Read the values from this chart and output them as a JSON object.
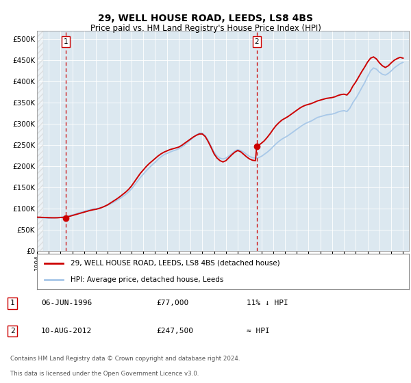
{
  "title": "29, WELL HOUSE ROAD, LEEDS, LS8 4BS",
  "subtitle": "Price paid vs. HM Land Registry's House Price Index (HPI)",
  "xlim": [
    1994.0,
    2025.5
  ],
  "ylim": [
    0,
    520000
  ],
  "yticks": [
    0,
    50000,
    100000,
    150000,
    200000,
    250000,
    300000,
    350000,
    400000,
    450000,
    500000
  ],
  "ytick_labels": [
    "£0",
    "£50K",
    "£100K",
    "£150K",
    "£200K",
    "£250K",
    "£300K",
    "£350K",
    "£400K",
    "£450K",
    "£500K"
  ],
  "hpi_color": "#a8c8e8",
  "price_color": "#cc0000",
  "vline_color": "#cc0000",
  "plot_bg_color": "#dce8f0",
  "marker1_date": 1996.44,
  "marker1_price": 77000,
  "marker2_date": 2012.61,
  "marker2_price": 247500,
  "legend_label1": "29, WELL HOUSE ROAD, LEEDS, LS8 4BS (detached house)",
  "legend_label2": "HPI: Average price, detached house, Leeds",
  "table_row1": [
    "1",
    "06-JUN-1996",
    "£77,000",
    "11% ↓ HPI"
  ],
  "table_row2": [
    "2",
    "10-AUG-2012",
    "£247,500",
    "≈ HPI"
  ],
  "footnote1": "Contains HM Land Registry data © Crown copyright and database right 2024.",
  "footnote2": "This data is licensed under the Open Government Licence v3.0.",
  "hpi_data": [
    [
      1994.0,
      78000
    ],
    [
      1994.25,
      78200
    ],
    [
      1994.5,
      77800
    ],
    [
      1994.75,
      77400
    ],
    [
      1995.0,
      77000
    ],
    [
      1995.25,
      77300
    ],
    [
      1995.5,
      77800
    ],
    [
      1995.75,
      78500
    ],
    [
      1996.0,
      79500
    ],
    [
      1996.25,
      80500
    ],
    [
      1996.5,
      81800
    ],
    [
      1996.75,
      83200
    ],
    [
      1997.0,
      85000
    ],
    [
      1997.25,
      87000
    ],
    [
      1997.5,
      89200
    ],
    [
      1997.75,
      91500
    ],
    [
      1998.0,
      93500
    ],
    [
      1998.25,
      95500
    ],
    [
      1998.5,
      97200
    ],
    [
      1998.75,
      98500
    ],
    [
      1999.0,
      99500
    ],
    [
      1999.25,
      101000
    ],
    [
      1999.5,
      103000
    ],
    [
      1999.75,
      105500
    ],
    [
      2000.0,
      108000
    ],
    [
      2000.25,
      111500
    ],
    [
      2000.5,
      115000
    ],
    [
      2000.75,
      119000
    ],
    [
      2001.0,
      123000
    ],
    [
      2001.25,
      128000
    ],
    [
      2001.5,
      133000
    ],
    [
      2001.75,
      139000
    ],
    [
      2002.0,
      146000
    ],
    [
      2002.25,
      155000
    ],
    [
      2002.5,
      164000
    ],
    [
      2002.75,
      173000
    ],
    [
      2003.0,
      181000
    ],
    [
      2003.25,
      189000
    ],
    [
      2003.5,
      196000
    ],
    [
      2003.75,
      203000
    ],
    [
      2004.0,
      209000
    ],
    [
      2004.25,
      216000
    ],
    [
      2004.5,
      222000
    ],
    [
      2004.75,
      227000
    ],
    [
      2005.0,
      230000
    ],
    [
      2005.25,
      233000
    ],
    [
      2005.5,
      236000
    ],
    [
      2005.75,
      238000
    ],
    [
      2006.0,
      241000
    ],
    [
      2006.25,
      245000
    ],
    [
      2006.5,
      250000
    ],
    [
      2006.75,
      256000
    ],
    [
      2007.0,
      262000
    ],
    [
      2007.25,
      268000
    ],
    [
      2007.5,
      274000
    ],
    [
      2007.75,
      278000
    ],
    [
      2008.0,
      278000
    ],
    [
      2008.25,
      272000
    ],
    [
      2008.5,
      261000
    ],
    [
      2008.75,
      247000
    ],
    [
      2009.0,
      233000
    ],
    [
      2009.25,
      224000
    ],
    [
      2009.5,
      219000
    ],
    [
      2009.75,
      217000
    ],
    [
      2010.0,
      219000
    ],
    [
      2010.25,
      224000
    ],
    [
      2010.5,
      230000
    ],
    [
      2010.75,
      236000
    ],
    [
      2011.0,
      239000
    ],
    [
      2011.25,
      237000
    ],
    [
      2011.5,
      233000
    ],
    [
      2011.75,
      228000
    ],
    [
      2012.0,
      223000
    ],
    [
      2012.25,
      220000
    ],
    [
      2012.5,
      219000
    ],
    [
      2012.75,
      220000
    ],
    [
      2013.0,
      223000
    ],
    [
      2013.25,
      228000
    ],
    [
      2013.5,
      233000
    ],
    [
      2013.75,
      239000
    ],
    [
      2014.0,
      246000
    ],
    [
      2014.25,
      253000
    ],
    [
      2014.5,
      259000
    ],
    [
      2014.75,
      264000
    ],
    [
      2015.0,
      268000
    ],
    [
      2015.25,
      272000
    ],
    [
      2015.5,
      277000
    ],
    [
      2015.75,
      282000
    ],
    [
      2016.0,
      287000
    ],
    [
      2016.25,
      292000
    ],
    [
      2016.5,
      297000
    ],
    [
      2016.75,
      301000
    ],
    [
      2017.0,
      304000
    ],
    [
      2017.25,
      307000
    ],
    [
      2017.5,
      311000
    ],
    [
      2017.75,
      315000
    ],
    [
      2018.0,
      317000
    ],
    [
      2018.25,
      319000
    ],
    [
      2018.5,
      321000
    ],
    [
      2018.75,
      322000
    ],
    [
      2019.0,
      323000
    ],
    [
      2019.25,
      325000
    ],
    [
      2019.5,
      328000
    ],
    [
      2019.75,
      330000
    ],
    [
      2020.0,
      331000
    ],
    [
      2020.25,
      329000
    ],
    [
      2020.5,
      337000
    ],
    [
      2020.75,
      350000
    ],
    [
      2021.0,
      360000
    ],
    [
      2021.25,
      372000
    ],
    [
      2021.5,
      385000
    ],
    [
      2021.75,
      397000
    ],
    [
      2022.0,
      412000
    ],
    [
      2022.25,
      425000
    ],
    [
      2022.5,
      432000
    ],
    [
      2022.75,
      429000
    ],
    [
      2023.0,
      422000
    ],
    [
      2023.25,
      417000
    ],
    [
      2023.5,
      415000
    ],
    [
      2023.75,
      419000
    ],
    [
      2024.0,
      425000
    ],
    [
      2024.25,
      432000
    ],
    [
      2024.5,
      437000
    ],
    [
      2024.75,
      442000
    ],
    [
      2025.0,
      445000
    ]
  ],
  "price_data": [
    [
      1994.0,
      79500
    ],
    [
      1994.25,
      79300
    ],
    [
      1994.5,
      79000
    ],
    [
      1994.75,
      78700
    ],
    [
      1995.0,
      78400
    ],
    [
      1995.25,
      78200
    ],
    [
      1995.5,
      78100
    ],
    [
      1995.75,
      78200
    ],
    [
      1996.0,
      78800
    ],
    [
      1996.25,
      79200
    ],
    [
      1996.44,
      77000
    ],
    [
      1996.5,
      80000
    ],
    [
      1996.75,
      81500
    ],
    [
      1997.0,
      83500
    ],
    [
      1997.25,
      85500
    ],
    [
      1997.5,
      87500
    ],
    [
      1997.75,
      89500
    ],
    [
      1998.0,
      91500
    ],
    [
      1998.25,
      93500
    ],
    [
      1998.5,
      95500
    ],
    [
      1998.75,
      97000
    ],
    [
      1999.0,
      98200
    ],
    [
      1999.25,
      100000
    ],
    [
      1999.5,
      102500
    ],
    [
      1999.75,
      105500
    ],
    [
      2000.0,
      109000
    ],
    [
      2000.25,
      113500
    ],
    [
      2000.5,
      118000
    ],
    [
      2000.75,
      122500
    ],
    [
      2001.0,
      127500
    ],
    [
      2001.25,
      133000
    ],
    [
      2001.5,
      138500
    ],
    [
      2001.75,
      145000
    ],
    [
      2002.0,
      153000
    ],
    [
      2002.25,
      163000
    ],
    [
      2002.5,
      173000
    ],
    [
      2002.75,
      183000
    ],
    [
      2003.0,
      191000
    ],
    [
      2003.25,
      199000
    ],
    [
      2003.5,
      206000
    ],
    [
      2003.75,
      212000
    ],
    [
      2004.0,
      218000
    ],
    [
      2004.25,
      224000
    ],
    [
      2004.5,
      229000
    ],
    [
      2004.75,
      233000
    ],
    [
      2005.0,
      236000
    ],
    [
      2005.25,
      239000
    ],
    [
      2005.5,
      241000
    ],
    [
      2005.75,
      243000
    ],
    [
      2006.0,
      245000
    ],
    [
      2006.25,
      249000
    ],
    [
      2006.5,
      254000
    ],
    [
      2006.75,
      259000
    ],
    [
      2007.0,
      264000
    ],
    [
      2007.25,
      269000
    ],
    [
      2007.5,
      273000
    ],
    [
      2007.75,
      276000
    ],
    [
      2008.0,
      276000
    ],
    [
      2008.25,
      270000
    ],
    [
      2008.5,
      258000
    ],
    [
      2008.75,
      244000
    ],
    [
      2009.0,
      229000
    ],
    [
      2009.25,
      219000
    ],
    [
      2009.5,
      213000
    ],
    [
      2009.75,
      210000
    ],
    [
      2010.0,
      213000
    ],
    [
      2010.25,
      220000
    ],
    [
      2010.5,
      227000
    ],
    [
      2010.75,
      233000
    ],
    [
      2011.0,
      237000
    ],
    [
      2011.25,
      234000
    ],
    [
      2011.5,
      228000
    ],
    [
      2011.75,
      222000
    ],
    [
      2012.0,
      217000
    ],
    [
      2012.25,
      214000
    ],
    [
      2012.5,
      213000
    ],
    [
      2012.61,
      247500
    ],
    [
      2012.75,
      249000
    ],
    [
      2013.0,
      254000
    ],
    [
      2013.25,
      260000
    ],
    [
      2013.5,
      268000
    ],
    [
      2013.75,
      277000
    ],
    [
      2014.0,
      287000
    ],
    [
      2014.25,
      296000
    ],
    [
      2014.5,
      303000
    ],
    [
      2014.75,
      309000
    ],
    [
      2015.0,
      313000
    ],
    [
      2015.25,
      317000
    ],
    [
      2015.5,
      322000
    ],
    [
      2015.75,
      327000
    ],
    [
      2016.0,
      332000
    ],
    [
      2016.25,
      337000
    ],
    [
      2016.5,
      341000
    ],
    [
      2016.75,
      344000
    ],
    [
      2017.0,
      346000
    ],
    [
      2017.25,
      348000
    ],
    [
      2017.5,
      351000
    ],
    [
      2017.75,
      354000
    ],
    [
      2018.0,
      356000
    ],
    [
      2018.25,
      358000
    ],
    [
      2018.5,
      360000
    ],
    [
      2018.75,
      361000
    ],
    [
      2019.0,
      362000
    ],
    [
      2019.25,
      364000
    ],
    [
      2019.5,
      367000
    ],
    [
      2019.75,
      369000
    ],
    [
      2020.0,
      370000
    ],
    [
      2020.25,
      368000
    ],
    [
      2020.5,
      376000
    ],
    [
      2020.75,
      389000
    ],
    [
      2021.0,
      399000
    ],
    [
      2021.25,
      411000
    ],
    [
      2021.5,
      423000
    ],
    [
      2021.75,
      434000
    ],
    [
      2022.0,
      446000
    ],
    [
      2022.25,
      455000
    ],
    [
      2022.5,
      458000
    ],
    [
      2022.75,
      453000
    ],
    [
      2023.0,
      444000
    ],
    [
      2023.25,
      437000
    ],
    [
      2023.5,
      433000
    ],
    [
      2023.75,
      437000
    ],
    [
      2024.0,
      444000
    ],
    [
      2024.25,
      450000
    ],
    [
      2024.5,
      454000
    ],
    [
      2024.75,
      457000
    ],
    [
      2025.0,
      455000
    ]
  ]
}
